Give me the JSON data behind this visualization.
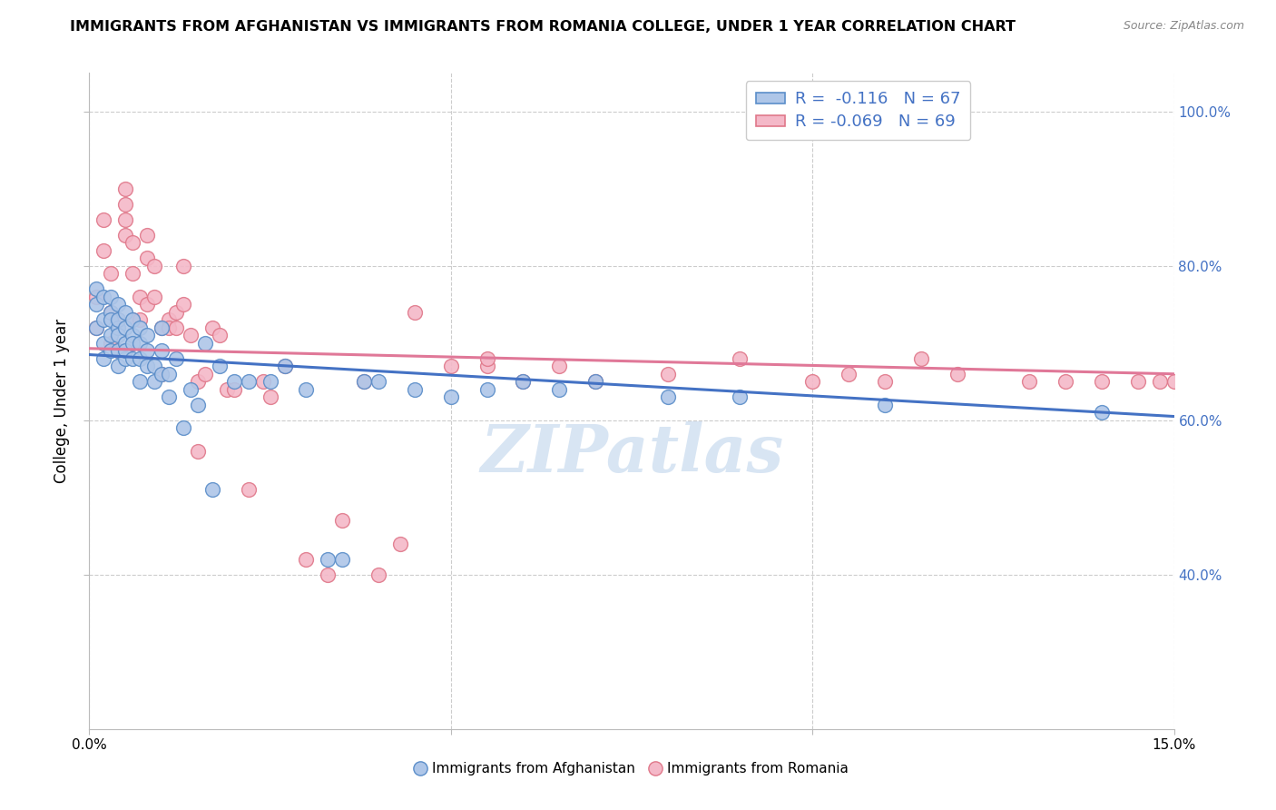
{
  "title": "IMMIGRANTS FROM AFGHANISTAN VS IMMIGRANTS FROM ROMANIA COLLEGE, UNDER 1 YEAR CORRELATION CHART",
  "source": "Source: ZipAtlas.com",
  "ylabel": "College, Under 1 year",
  "xlim": [
    0.0,
    0.15
  ],
  "ylim": [
    0.2,
    1.05
  ],
  "afghanistan_color": "#aec6e8",
  "afghanistan_edge_color": "#5b8ec9",
  "romania_color": "#f4b8c8",
  "romania_edge_color": "#e0788a",
  "afghanistan_line_color": "#4472c4",
  "romania_line_color": "#e07898",
  "legend_R_afghanistan": "-0.116",
  "legend_N_afghanistan": "67",
  "legend_R_romania": "-0.069",
  "legend_N_romania": "69",
  "afghanistan_x": [
    0.001,
    0.001,
    0.001,
    0.002,
    0.002,
    0.002,
    0.002,
    0.003,
    0.003,
    0.003,
    0.003,
    0.003,
    0.004,
    0.004,
    0.004,
    0.004,
    0.004,
    0.004,
    0.005,
    0.005,
    0.005,
    0.005,
    0.005,
    0.006,
    0.006,
    0.006,
    0.006,
    0.007,
    0.007,
    0.007,
    0.007,
    0.008,
    0.008,
    0.008,
    0.009,
    0.009,
    0.01,
    0.01,
    0.01,
    0.011,
    0.011,
    0.012,
    0.013,
    0.014,
    0.015,
    0.016,
    0.017,
    0.018,
    0.02,
    0.022,
    0.025,
    0.027,
    0.03,
    0.033,
    0.035,
    0.038,
    0.04,
    0.045,
    0.05,
    0.055,
    0.06,
    0.065,
    0.07,
    0.08,
    0.09,
    0.11,
    0.14
  ],
  "afghanistan_y": [
    0.72,
    0.75,
    0.77,
    0.7,
    0.73,
    0.76,
    0.68,
    0.74,
    0.71,
    0.69,
    0.76,
    0.73,
    0.72,
    0.69,
    0.75,
    0.71,
    0.67,
    0.73,
    0.7,
    0.68,
    0.72,
    0.74,
    0.69,
    0.71,
    0.73,
    0.68,
    0.7,
    0.72,
    0.68,
    0.65,
    0.7,
    0.69,
    0.67,
    0.71,
    0.67,
    0.65,
    0.66,
    0.69,
    0.72,
    0.66,
    0.63,
    0.68,
    0.59,
    0.64,
    0.62,
    0.7,
    0.51,
    0.67,
    0.65,
    0.65,
    0.65,
    0.67,
    0.64,
    0.42,
    0.42,
    0.65,
    0.65,
    0.64,
    0.63,
    0.64,
    0.65,
    0.64,
    0.65,
    0.63,
    0.63,
    0.62,
    0.61
  ],
  "romania_x": [
    0.001,
    0.001,
    0.002,
    0.002,
    0.003,
    0.003,
    0.003,
    0.004,
    0.004,
    0.005,
    0.005,
    0.005,
    0.005,
    0.006,
    0.006,
    0.006,
    0.007,
    0.007,
    0.008,
    0.008,
    0.008,
    0.009,
    0.009,
    0.01,
    0.01,
    0.011,
    0.011,
    0.012,
    0.012,
    0.013,
    0.013,
    0.014,
    0.015,
    0.015,
    0.016,
    0.017,
    0.018,
    0.019,
    0.02,
    0.022,
    0.024,
    0.025,
    0.027,
    0.03,
    0.033,
    0.035,
    0.038,
    0.04,
    0.043,
    0.05,
    0.055,
    0.065,
    0.08,
    0.09,
    0.1,
    0.105,
    0.11,
    0.115,
    0.12,
    0.13,
    0.135,
    0.14,
    0.145,
    0.148,
    0.15,
    0.07,
    0.06,
    0.045,
    0.055
  ],
  "romania_y": [
    0.72,
    0.76,
    0.82,
    0.86,
    0.7,
    0.74,
    0.79,
    0.69,
    0.73,
    0.88,
    0.9,
    0.84,
    0.86,
    0.73,
    0.79,
    0.83,
    0.73,
    0.76,
    0.81,
    0.84,
    0.75,
    0.8,
    0.76,
    0.66,
    0.72,
    0.73,
    0.72,
    0.72,
    0.74,
    0.8,
    0.75,
    0.71,
    0.65,
    0.56,
    0.66,
    0.72,
    0.71,
    0.64,
    0.64,
    0.51,
    0.65,
    0.63,
    0.67,
    0.42,
    0.4,
    0.47,
    0.65,
    0.4,
    0.44,
    0.67,
    0.67,
    0.67,
    0.66,
    0.68,
    0.65,
    0.66,
    0.65,
    0.68,
    0.66,
    0.65,
    0.65,
    0.65,
    0.65,
    0.65,
    0.65,
    0.65,
    0.65,
    0.74,
    0.68
  ],
  "afghanistan_trend": [
    0.0,
    0.15,
    0.685,
    0.605
  ],
  "romania_trend": [
    0.0,
    0.15,
    0.693,
    0.66
  ],
  "watermark": "ZIPatlas",
  "ytick_positions": [
    0.4,
    0.6,
    0.8,
    1.0
  ],
  "ytick_labels": [
    "40.0%",
    "60.0%",
    "80.0%",
    "100.0%"
  ],
  "xtick_positions": [
    0.0,
    0.05,
    0.1,
    0.15
  ],
  "xtick_labels": [
    "0.0%",
    "",
    "",
    "15.0%"
  ],
  "bottom_legend_label_afg": "Immigrants from Afghanistan",
  "bottom_legend_label_rom": "Immigrants from Romania"
}
